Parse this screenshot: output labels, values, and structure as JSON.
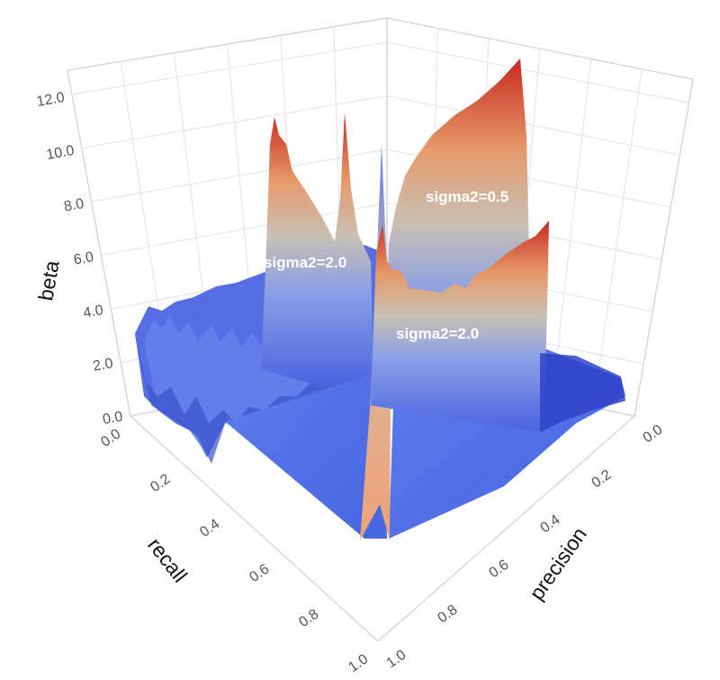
{
  "chart_data": {
    "type": "surface3d",
    "title": "",
    "x_axis": {
      "label": "recall",
      "range": [
        0.0,
        1.0
      ],
      "ticks": [
        "0.0",
        "0.2",
        "0.4",
        "0.6",
        "0.8",
        "1.0"
      ]
    },
    "y_axis": {
      "label": "precision",
      "range": [
        0.0,
        1.0
      ],
      "ticks": [
        "0.0",
        "0.2",
        "0.4",
        "0.6",
        "0.8",
        "1.0"
      ]
    },
    "z_axis": {
      "label": "beta",
      "range": [
        0.0,
        13.0
      ],
      "ticks": [
        "0.0",
        "2.0",
        "4.0",
        "6.0",
        "8.0",
        "10.0",
        "12.0"
      ]
    },
    "colorscale": [
      "#2b3fd6",
      "#5b78ea",
      "#a9b9d4",
      "#e6a271",
      "#c4271c"
    ],
    "grid": true,
    "annotations": [
      {
        "text": "sigma2=2.0",
        "recall": 0.35,
        "precision": 0.55,
        "beta": 7.0
      },
      {
        "text": "sigma2=0.5",
        "recall": 0.45,
        "precision": 0.15,
        "beta": 10.0
      },
      {
        "text": "sigma2=2.0",
        "recall": 0.65,
        "precision": 0.25,
        "beta": 6.5
      }
    ],
    "surfaces": [
      {
        "name": "sigma2=2.0 (left)",
        "ridge_line": [
          {
            "recall": 0.05,
            "precision": 0.95,
            "beta": 3.2
          },
          {
            "recall": 0.15,
            "precision": 0.85,
            "beta": 3.4
          },
          {
            "recall": 0.25,
            "precision": 0.75,
            "beta": 3.0
          },
          {
            "recall": 0.33,
            "precision": 0.62,
            "beta": 10.5
          },
          {
            "recall": 0.38,
            "precision": 0.56,
            "beta": 8.0
          },
          {
            "recall": 0.42,
            "precision": 0.5,
            "beta": 11.0
          },
          {
            "recall": 0.45,
            "precision": 0.46,
            "beta": 5.5
          }
        ]
      },
      {
        "name": "sigma2=0.5",
        "ridge_line": [
          {
            "recall": 0.4,
            "precision": 0.45,
            "beta": 12.0
          },
          {
            "recall": 0.42,
            "precision": 0.35,
            "beta": 8.5
          },
          {
            "recall": 0.44,
            "precision": 0.25,
            "beta": 9.5
          },
          {
            "recall": 0.45,
            "precision": 0.1,
            "beta": 11.5
          },
          {
            "recall": 0.45,
            "precision": 0.02,
            "beta": 12.8
          }
        ]
      },
      {
        "name": "sigma2=2.0 (right)",
        "ridge_line": [
          {
            "recall": 0.6,
            "precision": 0.45,
            "beta": 7.5
          },
          {
            "recall": 0.62,
            "precision": 0.35,
            "beta": 4.5
          },
          {
            "recall": 0.66,
            "precision": 0.25,
            "beta": 5.5
          },
          {
            "recall": 0.7,
            "precision": 0.08,
            "beta": 8.5
          }
        ]
      }
    ]
  }
}
